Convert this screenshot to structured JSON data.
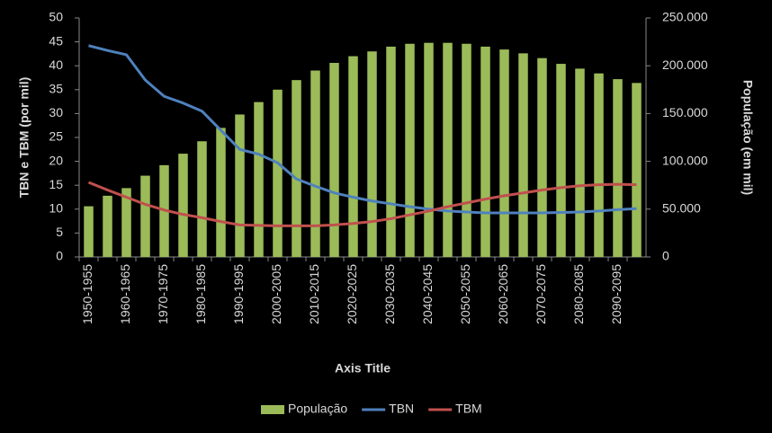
{
  "chart_data": {
    "type": "combo",
    "categories": [
      "1950-1955",
      null,
      "1960-1965",
      null,
      "1970-1975",
      null,
      "1980-1985",
      null,
      "1990-1995",
      null,
      "2000-2005",
      null,
      "2010-2015",
      null,
      "2020-2025",
      null,
      "2030-2035",
      null,
      "2040-2045",
      null,
      "2050-2055",
      null,
      "2060-2065",
      null,
      "2070-2075",
      null,
      "2080-2085",
      null,
      "2090-2095",
      null
    ],
    "series": [
      {
        "name": "População",
        "type": "bar",
        "axis": "y2",
        "color": "#9bbb59",
        "values": [
          53000,
          64000,
          72000,
          85000,
          96000,
          108000,
          121000,
          135000,
          149000,
          162000,
          175000,
          185000,
          195000,
          203000,
          210000,
          215000,
          220000,
          223000,
          224000,
          224000,
          223000,
          220000,
          217000,
          213000,
          208000,
          202000,
          197000,
          192000,
          186000,
          182000
        ]
      },
      {
        "name": "TBN",
        "type": "line",
        "color": "#4f81bd",
        "values": [
          44.2,
          43.2,
          42.3,
          37,
          33.6,
          32.2,
          30.5,
          26.5,
          22.5,
          21.5,
          19.7,
          16.3,
          14.8,
          13.4,
          12.5,
          11.7,
          11.1,
          10.5,
          10.0,
          9.6,
          9.4,
          9.2,
          9.2,
          9.2,
          9.2,
          9.3,
          9.4,
          9.6,
          9.9,
          10.1
        ]
      },
      {
        "name": "TBM",
        "type": "line",
        "color": "#c0504d",
        "values": [
          15.6,
          14.0,
          12.5,
          11.0,
          9.8,
          8.9,
          8.2,
          7.4,
          6.7,
          6.6,
          6.5,
          6.5,
          6.5,
          6.7,
          7.0,
          7.4,
          8.0,
          8.8,
          9.6,
          10.5,
          11.3,
          12.1,
          12.8,
          13.4,
          14.0,
          14.5,
          14.9,
          15.1,
          15.2,
          15.1
        ]
      }
    ],
    "ylim": [
      0,
      50
    ],
    "yticks": [
      0,
      5,
      10,
      15,
      20,
      25,
      30,
      35,
      40,
      45,
      50
    ],
    "y2lim": [
      0,
      250000
    ],
    "y2ticks": [
      0,
      {
        "value": 50000,
        "label": "50.000"
      },
      {
        "value": 100000,
        "label": "100.000"
      },
      {
        "value": 150000,
        "label": "150.000"
      },
      {
        "value": 200000,
        "label": "200.000"
      },
      {
        "value": 250000,
        "label": "250.000"
      }
    ],
    "ylabel": "TBN e TBM (por mil)",
    "y2label": "População (em mil)",
    "xlabel": "Axis Title",
    "legend": "bottom"
  }
}
